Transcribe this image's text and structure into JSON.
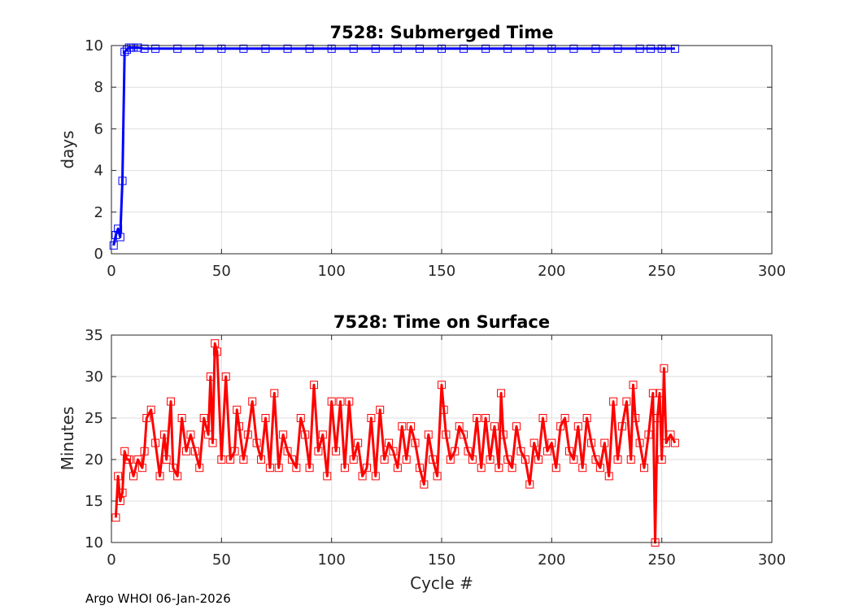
{
  "footer": "Argo WHOI 06-Jan-2026",
  "chart_data": [
    {
      "type": "line",
      "title": "7528: Submerged Time",
      "xlabel": "",
      "ylabel": "days",
      "xlim": [
        0,
        300
      ],
      "ylim": [
        0,
        10
      ],
      "xticks": [
        "0",
        "50",
        "100",
        "150",
        "200",
        "250",
        "300"
      ],
      "yticks": [
        "0",
        "2",
        "4",
        "6",
        "8",
        "10"
      ],
      "grid": true,
      "marker": "square",
      "color": "#0000ff",
      "series": [
        {
          "x": [
            1,
            2,
            3,
            4,
            5,
            6,
            7,
            8,
            9,
            10,
            12,
            15,
            20,
            30,
            40,
            50,
            60,
            70,
            80,
            90,
            100,
            110,
            120,
            130,
            140,
            150,
            160,
            170,
            180,
            190,
            200,
            210,
            220,
            230,
            240,
            245,
            250,
            256
          ],
          "y": [
            0.4,
            0.9,
            1.2,
            0.8,
            3.5,
            9.7,
            9.8,
            9.9,
            9.9,
            9.9,
            9.9,
            9.85,
            9.85,
            9.85,
            9.85,
            9.85,
            9.85,
            9.85,
            9.85,
            9.85,
            9.85,
            9.85,
            9.85,
            9.85,
            9.85,
            9.85,
            9.85,
            9.85,
            9.85,
            9.85,
            9.85,
            9.85,
            9.85,
            9.85,
            9.85,
            9.85,
            9.85,
            9.85
          ]
        }
      ]
    },
    {
      "type": "line",
      "title": "7528: Time on Surface",
      "xlabel": "Cycle #",
      "ylabel": "Minutes",
      "xlim": [
        0,
        300
      ],
      "ylim": [
        10,
        35
      ],
      "xticks": [
        "0",
        "50",
        "100",
        "150",
        "200",
        "250",
        "300"
      ],
      "yticks": [
        "10",
        "15",
        "20",
        "25",
        "30",
        "35"
      ],
      "grid": true,
      "marker": "square",
      "color": "#ff0000",
      "series": [
        {
          "x": [
            2,
            3,
            4,
            5,
            6,
            7,
            8,
            10,
            12,
            14,
            15,
            16,
            18,
            20,
            22,
            24,
            25,
            27,
            28,
            30,
            32,
            34,
            36,
            38,
            40,
            42,
            44,
            45,
            46,
            47,
            48,
            50,
            52,
            54,
            56,
            57,
            58,
            60,
            62,
            64,
            66,
            68,
            70,
            72,
            74,
            76,
            78,
            80,
            82,
            84,
            86,
            88,
            90,
            92,
            94,
            96,
            98,
            100,
            102,
            104,
            106,
            108,
            110,
            112,
            114,
            116,
            118,
            120,
            122,
            124,
            126,
            128,
            130,
            132,
            134,
            136,
            138,
            140,
            142,
            144,
            146,
            148,
            150,
            151,
            152,
            154,
            156,
            158,
            160,
            162,
            164,
            166,
            168,
            170,
            172,
            174,
            176,
            177,
            178,
            180,
            182,
            184,
            186,
            188,
            190,
            192,
            194,
            196,
            198,
            200,
            202,
            204,
            206,
            208,
            210,
            212,
            214,
            216,
            218,
            220,
            222,
            224,
            226,
            228,
            230,
            232,
            234,
            236,
            237,
            238,
            240,
            242,
            244,
            246,
            247,
            248,
            249,
            250,
            251,
            252,
            254,
            256
          ],
          "y": [
            13,
            18,
            15,
            16,
            21,
            20,
            20,
            18,
            20,
            19,
            21,
            25,
            26,
            22,
            18,
            23,
            20,
            27,
            19,
            18,
            25,
            21,
            23,
            21,
            19,
            25,
            23,
            30,
            22,
            34,
            33,
            20,
            30,
            20,
            21,
            26,
            24,
            20,
            23,
            27,
            22,
            20,
            25,
            19,
            28,
            19,
            23,
            21,
            20,
            19,
            25,
            23,
            19,
            29,
            21,
            23,
            18,
            27,
            21,
            27,
            19,
            27,
            20,
            22,
            18,
            19,
            25,
            18,
            26,
            20,
            22,
            21,
            19,
            24,
            20,
            24,
            22,
            19,
            17,
            23,
            20,
            18,
            29,
            26,
            23,
            20,
            21,
            24,
            23,
            21,
            20,
            25,
            19,
            25,
            20,
            24,
            19,
            28,
            23,
            20,
            19,
            24,
            21,
            20,
            17,
            22,
            20,
            25,
            21,
            22,
            19,
            24,
            25,
            21,
            20,
            24,
            19,
            25,
            22,
            20,
            19,
            22,
            18,
            27,
            20,
            24,
            27,
            20,
            29,
            25,
            22,
            19,
            23,
            28,
            10,
            25,
            28,
            20,
            31,
            22,
            23,
            22
          ]
        }
      ]
    }
  ]
}
